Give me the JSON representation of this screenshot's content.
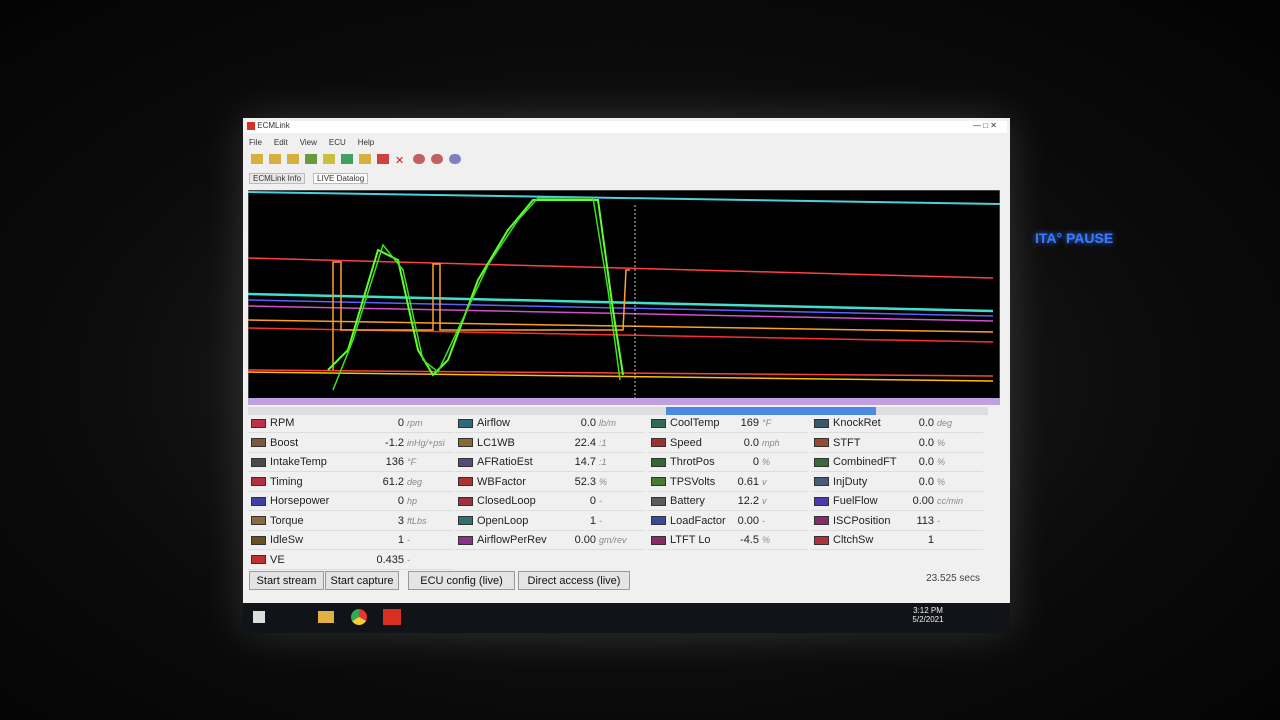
{
  "window": {
    "title": "ECMLink",
    "menu": [
      "File",
      "Edit",
      "View",
      "ECU",
      "Help"
    ],
    "tabs": [
      "ECMLink Info",
      "LIVE Datalog"
    ]
  },
  "parameters": [
    [
      {
        "name": "RPM",
        "value": "0",
        "unit": "rpm",
        "color": "#c0304a"
      },
      {
        "name": "Boost",
        "value": "-1.2",
        "unit": "inHg/+psi",
        "color": "#7a5a3a"
      },
      {
        "name": "IntakeTemp",
        "value": "136",
        "unit": "°F",
        "color": "#4a4a4a"
      },
      {
        "name": "Timing",
        "value": "61.2",
        "unit": "deg",
        "color": "#b03040"
      },
      {
        "name": "Horsepower",
        "value": "0",
        "unit": "hp",
        "color": "#4040a0"
      },
      {
        "name": "Torque",
        "value": "3",
        "unit": "ftLbs",
        "color": "#8a6a40"
      },
      {
        "name": "IdleSw",
        "value": "1",
        "unit": "-",
        "color": "#6a5020"
      },
      {
        "name": "VE",
        "value": "0.435",
        "unit": "-",
        "color": "#c03030"
      }
    ],
    [
      {
        "name": "Airflow",
        "value": "0.0",
        "unit": "lb/m",
        "color": "#306a7a"
      },
      {
        "name": "LC1WB",
        "value": "22.4",
        "unit": ":1",
        "color": "#8a6a30"
      },
      {
        "name": "AFRatioEst",
        "value": "14.7",
        "unit": ":1",
        "color": "#5a4a7a"
      },
      {
        "name": "WBFactor",
        "value": "52.3",
        "unit": "%",
        "color": "#b03030"
      },
      {
        "name": "ClosedLoop",
        "value": "0",
        "unit": "-",
        "color": "#a03040"
      },
      {
        "name": "OpenLoop",
        "value": "1",
        "unit": "-",
        "color": "#307070"
      },
      {
        "name": "AirflowPerRev",
        "value": "0.00",
        "unit": "gm/rev",
        "color": "#8a308a"
      }
    ],
    [
      {
        "name": "CoolTemp",
        "value": "169",
        "unit": "°F",
        "color": "#306a5a"
      },
      {
        "name": "Speed",
        "value": "0.0",
        "unit": "mph",
        "color": "#a03030"
      },
      {
        "name": "ThrotPos",
        "value": "0",
        "unit": "%",
        "color": "#306a30"
      },
      {
        "name": "TPSVolts",
        "value": "0.61",
        "unit": "v",
        "color": "#4a7a30"
      },
      {
        "name": "Battery",
        "value": "12.2",
        "unit": "v",
        "color": "#5a5a5a"
      },
      {
        "name": "LoadFactor",
        "value": "0.00",
        "unit": "-",
        "color": "#3a4a9a"
      },
      {
        "name": "LTFT Lo",
        "value": "-4.5",
        "unit": "%",
        "color": "#8a2a6a"
      }
    ],
    [
      {
        "name": "KnockRet",
        "value": "0.0",
        "unit": "deg",
        "color": "#3a5a6a"
      },
      {
        "name": "STFT",
        "value": "0.0",
        "unit": "%",
        "color": "#9a4a30"
      },
      {
        "name": "CombinedFT",
        "value": "0.0",
        "unit": "%",
        "color": "#3a6a3a"
      },
      {
        "name": "InjDuty",
        "value": "0.0",
        "unit": "%",
        "color": "#4a5a7a"
      },
      {
        "name": "FuelFlow",
        "value": "0.00",
        "unit": "cc/min",
        "color": "#4a3aaa"
      },
      {
        "name": "ISCPosition",
        "value": "113",
        "unit": "-",
        "color": "#8a2a6a"
      },
      {
        "name": "CltchSw",
        "value": "1",
        "unit": "",
        "color": "#b03040"
      }
    ]
  ],
  "buttons": [
    "Start stream",
    "Start capture",
    "ECU config (live)",
    "Direct access (live)"
  ],
  "elapsed": "23.525 secs",
  "taskbar": {
    "time": "3:12 PM",
    "date": "5/2/2021"
  },
  "dash_display": "ITA° PAUSE"
}
